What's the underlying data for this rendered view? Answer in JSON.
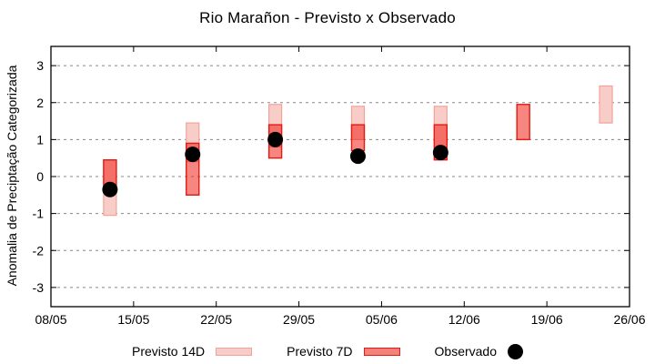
{
  "title": "Rio Marañon - Previsto x Observado",
  "legend": {
    "previsto14d_label": "Previsto 14D",
    "previsto7d_label": "Previsto 7D",
    "observado_label": "Observado"
  },
  "chart_data": {
    "type": "bar",
    "title": "Rio Marañon - Previsto x Observado",
    "xlabel": "",
    "ylabel": "Anomalia de Preciptação Categorizada",
    "x_tick_labels": [
      "08/05",
      "15/05",
      "22/05",
      "29/05",
      "05/06",
      "12/06",
      "19/06",
      "26/06"
    ],
    "x_tick_days": [
      0,
      7,
      14,
      21,
      28,
      35,
      42,
      49
    ],
    "y_ticks": [
      -3,
      -2,
      -1,
      0,
      1,
      2,
      3
    ],
    "ylim": [
      -3.52,
      3.52
    ],
    "grid": "horizontal-dashed",
    "legend_position": "bottom-center",
    "series": [
      {
        "name": "Previsto 14D",
        "style": "range-box",
        "fill": "#f8cdc8",
        "stroke": "#f0a39b"
      },
      {
        "name": "Previsto 7D",
        "style": "range-box",
        "fill": "rgba(240,35,25,0.55)",
        "stroke": "#e31b12"
      },
      {
        "name": "Observado",
        "style": "point",
        "fill": "#000000"
      }
    ],
    "bars": [
      {
        "date": "13/05",
        "day": 5,
        "previsto14d": [
          -1.05,
          0.45
        ],
        "previsto7d": [
          -0.4,
          0.45
        ],
        "observado": -0.35
      },
      {
        "date": "20/05",
        "day": 12,
        "previsto14d": [
          0.4,
          1.45
        ],
        "previsto7d": [
          -0.5,
          0.9
        ],
        "observado": 0.6
      },
      {
        "date": "27/05",
        "day": 19,
        "previsto14d": [
          0.8,
          1.95
        ],
        "previsto7d": [
          0.5,
          1.4
        ],
        "observado": 1.0
      },
      {
        "date": "03/06",
        "day": 26,
        "previsto14d": [
          1.0,
          1.9
        ],
        "previsto7d": [
          0.7,
          1.4
        ],
        "observado": 0.55
      },
      {
        "date": "10/06",
        "day": 33,
        "previsto14d": [
          0.7,
          1.9
        ],
        "previsto7d": [
          0.45,
          1.4
        ],
        "observado": 0.65
      },
      {
        "date": "17/06",
        "day": 40,
        "previsto14d": null,
        "previsto7d": [
          1.0,
          1.95
        ],
        "observado": null
      },
      {
        "date": "24/06",
        "day": 47,
        "previsto14d": [
          1.45,
          2.45
        ],
        "previsto7d": null,
        "observado": null
      }
    ],
    "colors": {
      "previsto14d_fill": "#f8cdc8",
      "previsto14d_border": "#f0a39b",
      "previsto7d_fill": "rgba(240,35,25,0.55)",
      "previsto7d_border": "#e31b12",
      "observado": "#000000",
      "grid": "#888888",
      "axis": "#000000"
    }
  }
}
